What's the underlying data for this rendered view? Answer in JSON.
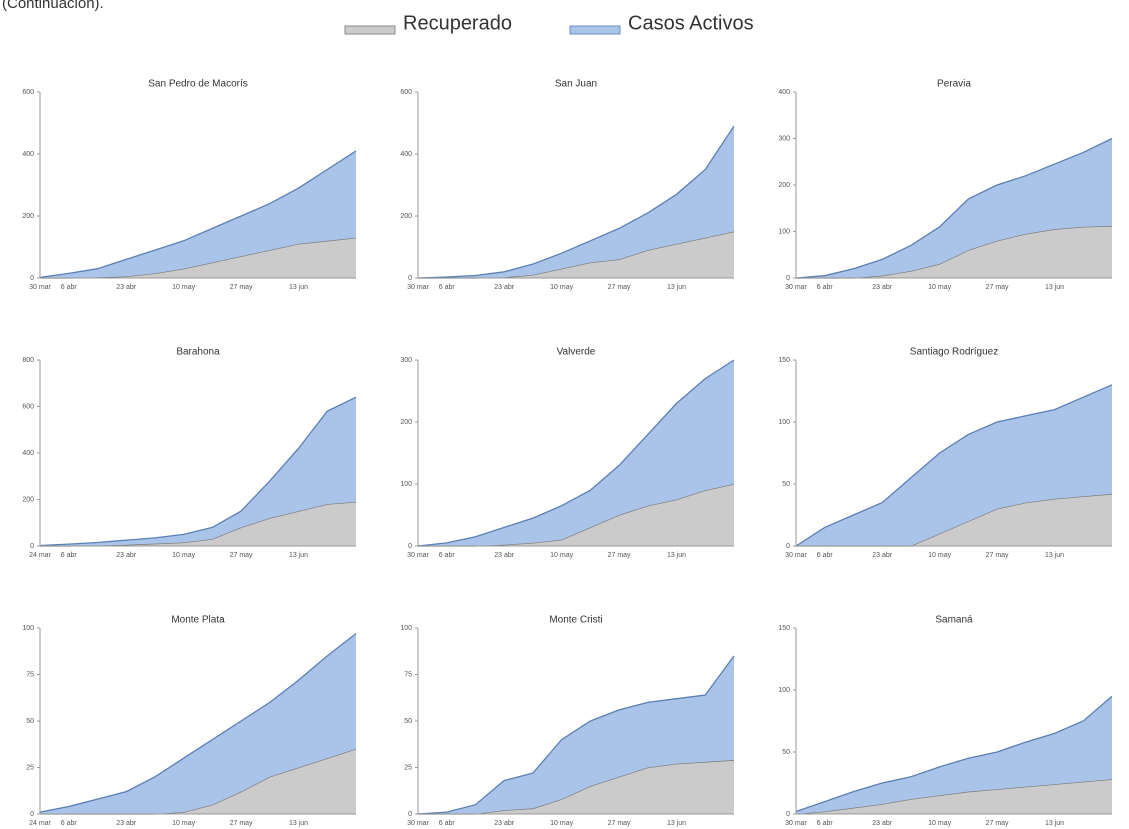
{
  "caption": "(Continuación).",
  "chart_data": [
    {
      "type": "area",
      "stacked": true,
      "title": "San Pedro de Macorís",
      "categories": [
        "30 mar",
        "6 abr",
        null,
        "23 abr",
        null,
        "10 may",
        null,
        "27 may",
        null,
        "13 jun",
        null,
        null
      ],
      "series": [
        {
          "name": "Recuperado",
          "color": "#cbcbcb",
          "values": [
            0,
            0,
            2,
            5,
            15,
            30,
            50,
            70,
            90,
            110,
            120,
            130
          ]
        },
        {
          "name": "Casos Activos",
          "color": "#a9c4e8",
          "values": [
            2,
            15,
            28,
            55,
            75,
            90,
            110,
            130,
            150,
            180,
            230,
            280
          ]
        }
      ],
      "ylim": [
        0,
        600
      ],
      "yticks": [
        0,
        200,
        400,
        600
      ]
    },
    {
      "type": "area",
      "stacked": true,
      "title": "San Juan",
      "categories": [
        "30 mar",
        "6 abr",
        null,
        "23 abr",
        null,
        "10 may",
        null,
        "27 may",
        null,
        "13 jun",
        null,
        null
      ],
      "series": [
        {
          "name": "Recuperado",
          "color": "#cbcbcb",
          "values": [
            0,
            0,
            0,
            2,
            10,
            30,
            50,
            60,
            90,
            110,
            130,
            150
          ]
        },
        {
          "name": "Casos Activos",
          "color": "#a9c4e8",
          "values": [
            0,
            3,
            8,
            18,
            35,
            50,
            70,
            100,
            120,
            160,
            220,
            340
          ]
        }
      ],
      "ylim": [
        0,
        600
      ],
      "yticks": [
        0,
        200,
        400,
        600
      ]
    },
    {
      "type": "area",
      "stacked": true,
      "title": "Peravia",
      "categories": [
        "30 mar",
        "6 abr",
        null,
        "23 abr",
        null,
        "10 may",
        null,
        "27 may",
        null,
        "13 jun",
        null,
        null
      ],
      "series": [
        {
          "name": "Recuperado",
          "color": "#cbcbcb",
          "values": [
            0,
            0,
            0,
            5,
            15,
            30,
            60,
            80,
            95,
            105,
            110,
            112
          ]
        },
        {
          "name": "Casos Activos",
          "color": "#a9c4e8",
          "values": [
            0,
            5,
            20,
            35,
            55,
            80,
            110,
            120,
            125,
            140,
            160,
            188
          ]
        }
      ],
      "ylim": [
        0,
        400
      ],
      "yticks": [
        0,
        100,
        200,
        300,
        400
      ]
    },
    {
      "type": "area",
      "stacked": true,
      "title": "Barahona",
      "categories": [
        "24 mar",
        "6 abr",
        null,
        "23 abr",
        null,
        "10 may",
        null,
        "27 may",
        null,
        "13 jun",
        null,
        null
      ],
      "series": [
        {
          "name": "Recuperado",
          "color": "#cbcbcb",
          "values": [
            0,
            0,
            2,
            5,
            10,
            15,
            30,
            80,
            120,
            150,
            180,
            190
          ]
        },
        {
          "name": "Casos Activos",
          "color": "#a9c4e8",
          "values": [
            2,
            8,
            13,
            20,
            25,
            35,
            50,
            70,
            160,
            270,
            400,
            450
          ]
        }
      ],
      "ylim": [
        0,
        800
      ],
      "yticks": [
        0,
        200,
        400,
        600,
        800
      ]
    },
    {
      "type": "area",
      "stacked": true,
      "title": "Valverde",
      "categories": [
        "30 mar",
        "6 abr",
        null,
        "23 abr",
        null,
        "10 may",
        null,
        "27 may",
        null,
        "13 jun",
        null,
        null
      ],
      "series": [
        {
          "name": "Recuperado",
          "color": "#cbcbcb",
          "values": [
            0,
            0,
            0,
            2,
            5,
            10,
            30,
            50,
            65,
            75,
            90,
            100
          ]
        },
        {
          "name": "Casos Activos",
          "color": "#a9c4e8",
          "values": [
            0,
            5,
            15,
            28,
            40,
            55,
            60,
            80,
            115,
            155,
            180,
            200
          ]
        }
      ],
      "ylim": [
        0,
        300
      ],
      "yticks": [
        0,
        100,
        200,
        300
      ]
    },
    {
      "type": "area",
      "stacked": true,
      "title": "Santiago Rodríguez",
      "categories": [
        "30 mar",
        "6 abr",
        null,
        "23 abr",
        null,
        "10 may",
        null,
        "27 may",
        null,
        "13 jun",
        null,
        null
      ],
      "series": [
        {
          "name": "Recuperado",
          "color": "#cbcbcb",
          "values": [
            0,
            0,
            0,
            0,
            0,
            10,
            20,
            30,
            35,
            38,
            40,
            42
          ]
        },
        {
          "name": "Casos Activos",
          "color": "#a9c4e8",
          "values": [
            0,
            15,
            25,
            35,
            55,
            65,
            70,
            70,
            70,
            72,
            80,
            88
          ]
        }
      ],
      "ylim": [
        0,
        150
      ],
      "yticks": [
        0,
        50,
        100,
        150
      ]
    },
    {
      "type": "area",
      "stacked": true,
      "title": "Monte Plata",
      "categories": [
        "24 mar",
        "6 abr",
        null,
        "23 abr",
        null,
        "10 may",
        null,
        "27 may",
        null,
        "13 jun",
        null,
        null
      ],
      "series": [
        {
          "name": "Recuperado",
          "color": "#cbcbcb",
          "values": [
            0,
            0,
            0,
            0,
            0,
            1,
            5,
            12,
            20,
            25,
            30,
            35
          ]
        },
        {
          "name": "Casos Activos",
          "color": "#a9c4e8",
          "values": [
            1,
            4,
            8,
            12,
            20,
            29,
            35,
            38,
            40,
            47,
            55,
            62
          ]
        }
      ],
      "ylim": [
        0,
        100
      ],
      "yticks": [
        0,
        25,
        50,
        75,
        100
      ]
    },
    {
      "type": "area",
      "stacked": true,
      "title": "Monte Cristi",
      "categories": [
        "30 mar",
        "6 abr",
        null,
        "23 abr",
        null,
        "10 may",
        null,
        "27 may",
        null,
        "13 jun",
        null,
        null
      ],
      "series": [
        {
          "name": "Recuperado",
          "color": "#cbcbcb",
          "values": [
            0,
            0,
            0,
            2,
            3,
            8,
            15,
            20,
            25,
            27,
            28,
            29
          ]
        },
        {
          "name": "Casos Activos",
          "color": "#a9c4e8",
          "values": [
            0,
            1,
            5,
            16,
            19,
            32,
            35,
            36,
            35,
            35,
            36,
            56
          ]
        }
      ],
      "ylim": [
        0,
        100
      ],
      "yticks": [
        0,
        25,
        50,
        75,
        100
      ]
    },
    {
      "type": "area",
      "stacked": true,
      "title": "Samaná",
      "categories": [
        "30 mar",
        "6 abr",
        null,
        "23 abr",
        null,
        "10 may",
        null,
        "27 may",
        null,
        "13 jun",
        null,
        null
      ],
      "series": [
        {
          "name": "Recuperado",
          "color": "#cbcbcb",
          "values": [
            0,
            2,
            5,
            8,
            12,
            15,
            18,
            20,
            22,
            24,
            26,
            28
          ]
        },
        {
          "name": "Casos Activos",
          "color": "#a9c4e8",
          "values": [
            2,
            8,
            13,
            17,
            18,
            23,
            27,
            30,
            36,
            41,
            49,
            67
          ]
        }
      ],
      "ylim": [
        0,
        150
      ],
      "yticks": [
        0,
        50,
        100,
        150
      ]
    }
  ]
}
